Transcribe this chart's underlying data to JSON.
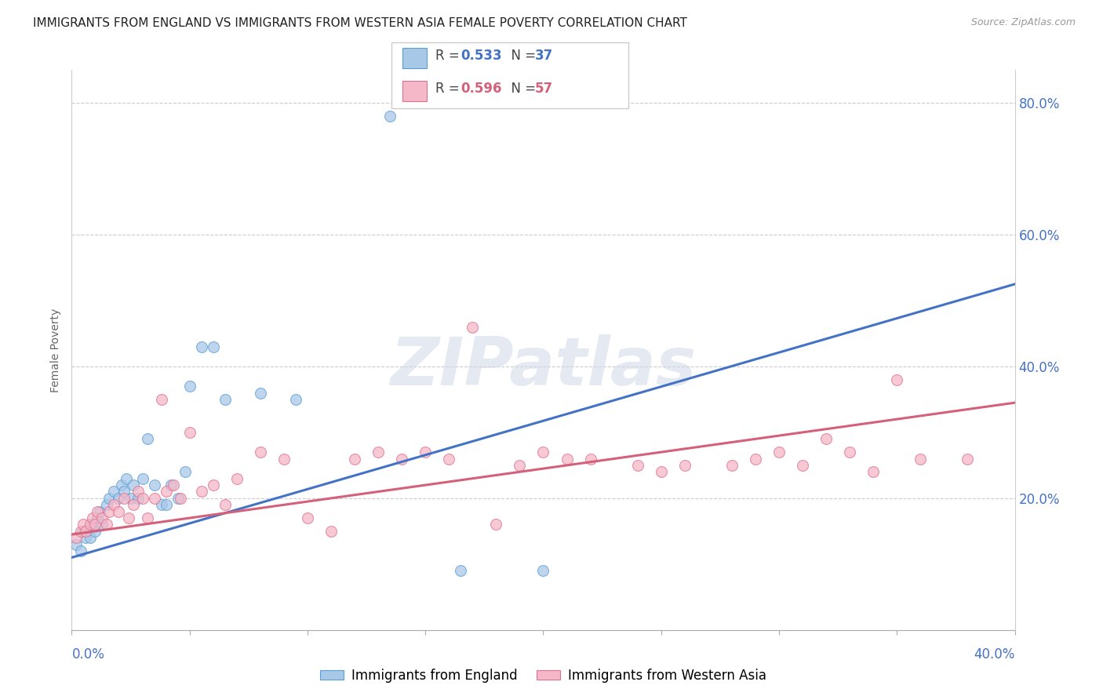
{
  "title": "IMMIGRANTS FROM ENGLAND VS IMMIGRANTS FROM WESTERN ASIA FEMALE POVERTY CORRELATION CHART",
  "source": "Source: ZipAtlas.com",
  "ylabel": "Female Poverty",
  "legend_label1": "Immigrants from England",
  "legend_label2": "Immigrants from Western Asia",
  "watermark": "ZIPatlas",
  "blue_scatter_color": "#a8c8e8",
  "blue_edge_color": "#5a9fd4",
  "pink_scatter_color": "#f4b8c8",
  "pink_edge_color": "#e07090",
  "blue_line_color": "#4472c4",
  "pink_line_color": "#d4607a",
  "right_axis_color": "#4472c4",
  "xlim": [
    0.0,
    0.4
  ],
  "ylim": [
    0.0,
    0.85
  ],
  "blue_line_x0": 0.0,
  "blue_line_y0": 0.11,
  "blue_line_x1": 0.4,
  "blue_line_y1": 0.525,
  "pink_line_x0": 0.0,
  "pink_line_y0": 0.145,
  "pink_line_x1": 0.4,
  "pink_line_y1": 0.345,
  "england_x": [
    0.002,
    0.004,
    0.005,
    0.006,
    0.008,
    0.009,
    0.01,
    0.011,
    0.012,
    0.013,
    0.015,
    0.016,
    0.018,
    0.02,
    0.021,
    0.022,
    0.023,
    0.025,
    0.026,
    0.028,
    0.03,
    0.032,
    0.035,
    0.038,
    0.04,
    0.042,
    0.045,
    0.048,
    0.05,
    0.055,
    0.06,
    0.065,
    0.08,
    0.095,
    0.135,
    0.165,
    0.2
  ],
  "england_y": [
    0.13,
    0.12,
    0.15,
    0.14,
    0.14,
    0.16,
    0.15,
    0.17,
    0.18,
    0.16,
    0.19,
    0.2,
    0.21,
    0.2,
    0.22,
    0.21,
    0.23,
    0.2,
    0.22,
    0.2,
    0.23,
    0.29,
    0.22,
    0.19,
    0.19,
    0.22,
    0.2,
    0.24,
    0.37,
    0.43,
    0.43,
    0.35,
    0.36,
    0.35,
    0.78,
    0.09,
    0.09
  ],
  "western_asia_x": [
    0.002,
    0.004,
    0.005,
    0.006,
    0.008,
    0.009,
    0.01,
    0.011,
    0.013,
    0.015,
    0.016,
    0.018,
    0.02,
    0.022,
    0.024,
    0.026,
    0.028,
    0.03,
    0.032,
    0.035,
    0.038,
    0.04,
    0.043,
    0.046,
    0.05,
    0.055,
    0.06,
    0.065,
    0.07,
    0.08,
    0.09,
    0.1,
    0.11,
    0.12,
    0.13,
    0.14,
    0.15,
    0.16,
    0.17,
    0.18,
    0.19,
    0.2,
    0.21,
    0.22,
    0.24,
    0.25,
    0.26,
    0.28,
    0.29,
    0.3,
    0.31,
    0.32,
    0.33,
    0.34,
    0.35,
    0.36,
    0.38
  ],
  "western_asia_y": [
    0.14,
    0.15,
    0.16,
    0.15,
    0.16,
    0.17,
    0.16,
    0.18,
    0.17,
    0.16,
    0.18,
    0.19,
    0.18,
    0.2,
    0.17,
    0.19,
    0.21,
    0.2,
    0.17,
    0.2,
    0.35,
    0.21,
    0.22,
    0.2,
    0.3,
    0.21,
    0.22,
    0.19,
    0.23,
    0.27,
    0.26,
    0.17,
    0.15,
    0.26,
    0.27,
    0.26,
    0.27,
    0.26,
    0.46,
    0.16,
    0.25,
    0.27,
    0.26,
    0.26,
    0.25,
    0.24,
    0.25,
    0.25,
    0.26,
    0.27,
    0.25,
    0.29,
    0.27,
    0.24,
    0.38,
    0.26,
    0.26
  ]
}
